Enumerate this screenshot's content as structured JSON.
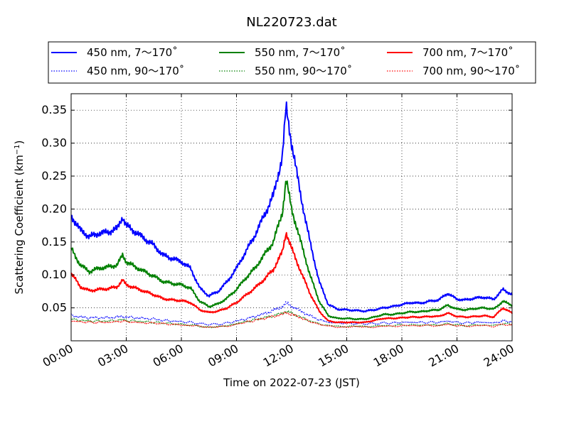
{
  "chart_data": {
    "type": "line",
    "title": "NL220723.dat",
    "xlabel": "Time on 2022-07-23 (JST)",
    "ylabel": "Scattering Coefficient (km",
    "ylabel_unit_exp": "−1",
    "ylabel_close": ")",
    "x_unit": "hours",
    "xlim": [
      0,
      24
    ],
    "ylim": [
      0.0,
      0.375
    ],
    "x_ticks": [
      {
        "value": 0,
        "label": "00:00"
      },
      {
        "value": 3,
        "label": "03:00"
      },
      {
        "value": 6,
        "label": "06:00"
      },
      {
        "value": 9,
        "label": "09:00"
      },
      {
        "value": 12,
        "label": "12:00"
      },
      {
        "value": 15,
        "label": "15:00"
      },
      {
        "value": 18,
        "label": "18:00"
      },
      {
        "value": 21,
        "label": "21:00"
      },
      {
        "value": 24,
        "label": "24:00"
      }
    ],
    "y_ticks": [
      {
        "value": 0.05,
        "label": "0.05"
      },
      {
        "value": 0.1,
        "label": "0.10"
      },
      {
        "value": 0.15,
        "label": "0.15"
      },
      {
        "value": 0.2,
        "label": "0.20"
      },
      {
        "value": 0.25,
        "label": "0.25"
      },
      {
        "value": 0.3,
        "label": "0.30"
      },
      {
        "value": 0.35,
        "label": "0.35"
      }
    ],
    "grid": true,
    "legend_position": "top, above plot",
    "x": [
      0,
      0.5,
      1,
      1.5,
      2,
      2.5,
      2.8,
      3,
      3.5,
      4,
      4.5,
      5,
      5.5,
      6,
      6.5,
      7,
      7.5,
      8,
      8.5,
      9,
      9.5,
      10,
      10.5,
      11,
      11.5,
      11.7,
      12,
      12.5,
      13,
      13.5,
      14,
      14.5,
      15,
      15.5,
      16,
      16.5,
      17,
      17.5,
      18,
      18.5,
      19,
      19.5,
      20,
      20.5,
      21,
      21.5,
      22,
      22.5,
      23,
      23.5,
      24
    ],
    "series": [
      {
        "name": "450 nm, 7～170˚",
        "color": "#0000ff",
        "style": "solid",
        "values": [
          0.19,
          0.168,
          0.158,
          0.163,
          0.165,
          0.17,
          0.188,
          0.175,
          0.165,
          0.155,
          0.145,
          0.13,
          0.125,
          0.12,
          0.11,
          0.08,
          0.068,
          0.075,
          0.09,
          0.11,
          0.135,
          0.16,
          0.19,
          0.22,
          0.28,
          0.355,
          0.3,
          0.22,
          0.15,
          0.09,
          0.055,
          0.048,
          0.047,
          0.046,
          0.045,
          0.047,
          0.05,
          0.052,
          0.055,
          0.058,
          0.057,
          0.06,
          0.062,
          0.072,
          0.063,
          0.062,
          0.065,
          0.066,
          0.063,
          0.078,
          0.07
        ]
      },
      {
        "name": "450 nm, 90～170˚",
        "color": "#0000ff",
        "style": "dotted",
        "values": [
          0.039,
          0.036,
          0.035,
          0.035,
          0.035,
          0.036,
          0.037,
          0.036,
          0.035,
          0.034,
          0.033,
          0.031,
          0.03,
          0.029,
          0.028,
          0.026,
          0.025,
          0.025,
          0.027,
          0.03,
          0.033,
          0.037,
          0.041,
          0.046,
          0.052,
          0.057,
          0.053,
          0.045,
          0.038,
          0.032,
          0.028,
          0.027,
          0.027,
          0.026,
          0.026,
          0.026,
          0.027,
          0.027,
          0.028,
          0.028,
          0.028,
          0.028,
          0.028,
          0.03,
          0.028,
          0.027,
          0.028,
          0.028,
          0.027,
          0.03,
          0.029
        ]
      },
      {
        "name": "550 nm, 7～170˚",
        "color": "#008000",
        "style": "solid",
        "values": [
          0.14,
          0.115,
          0.105,
          0.11,
          0.112,
          0.115,
          0.13,
          0.12,
          0.112,
          0.105,
          0.098,
          0.09,
          0.087,
          0.085,
          0.08,
          0.06,
          0.052,
          0.056,
          0.065,
          0.078,
          0.095,
          0.11,
          0.13,
          0.15,
          0.195,
          0.245,
          0.2,
          0.15,
          0.1,
          0.06,
          0.038,
          0.034,
          0.034,
          0.033,
          0.033,
          0.036,
          0.04,
          0.04,
          0.042,
          0.044,
          0.044,
          0.046,
          0.047,
          0.054,
          0.048,
          0.047,
          0.049,
          0.05,
          0.048,
          0.06,
          0.054
        ]
      },
      {
        "name": "550 nm, 90～170˚",
        "color": "#008000",
        "style": "dotted",
        "values": [
          0.033,
          0.031,
          0.03,
          0.03,
          0.03,
          0.031,
          0.032,
          0.031,
          0.03,
          0.029,
          0.028,
          0.027,
          0.026,
          0.025,
          0.024,
          0.022,
          0.021,
          0.021,
          0.023,
          0.026,
          0.029,
          0.032,
          0.035,
          0.038,
          0.042,
          0.045,
          0.042,
          0.036,
          0.03,
          0.026,
          0.023,
          0.022,
          0.022,
          0.022,
          0.022,
          0.022,
          0.023,
          0.023,
          0.024,
          0.024,
          0.024,
          0.024,
          0.024,
          0.026,
          0.024,
          0.023,
          0.024,
          0.024,
          0.023,
          0.026,
          0.025
        ]
      },
      {
        "name": "700 nm, 7～170˚",
        "color": "#ff0000",
        "style": "solid",
        "values": [
          0.103,
          0.082,
          0.076,
          0.078,
          0.079,
          0.082,
          0.092,
          0.085,
          0.08,
          0.075,
          0.07,
          0.064,
          0.062,
          0.061,
          0.058,
          0.047,
          0.043,
          0.045,
          0.05,
          0.058,
          0.069,
          0.08,
          0.093,
          0.108,
          0.135,
          0.165,
          0.14,
          0.105,
          0.072,
          0.045,
          0.03,
          0.028,
          0.028,
          0.028,
          0.028,
          0.031,
          0.034,
          0.034,
          0.035,
          0.036,
          0.036,
          0.037,
          0.037,
          0.042,
          0.037,
          0.036,
          0.037,
          0.038,
          0.036,
          0.05,
          0.042
        ]
      },
      {
        "name": "700 nm, 90～170˚",
        "color": "#ff0000",
        "style": "dotted",
        "values": [
          0.03,
          0.029,
          0.028,
          0.028,
          0.028,
          0.029,
          0.03,
          0.029,
          0.028,
          0.027,
          0.027,
          0.026,
          0.025,
          0.024,
          0.023,
          0.022,
          0.021,
          0.021,
          0.022,
          0.025,
          0.028,
          0.031,
          0.034,
          0.037,
          0.04,
          0.043,
          0.04,
          0.035,
          0.029,
          0.025,
          0.022,
          0.021,
          0.021,
          0.021,
          0.021,
          0.021,
          0.022,
          0.022,
          0.023,
          0.023,
          0.023,
          0.023,
          0.023,
          0.025,
          0.023,
          0.022,
          0.023,
          0.023,
          0.022,
          0.025,
          0.024
        ]
      }
    ]
  }
}
